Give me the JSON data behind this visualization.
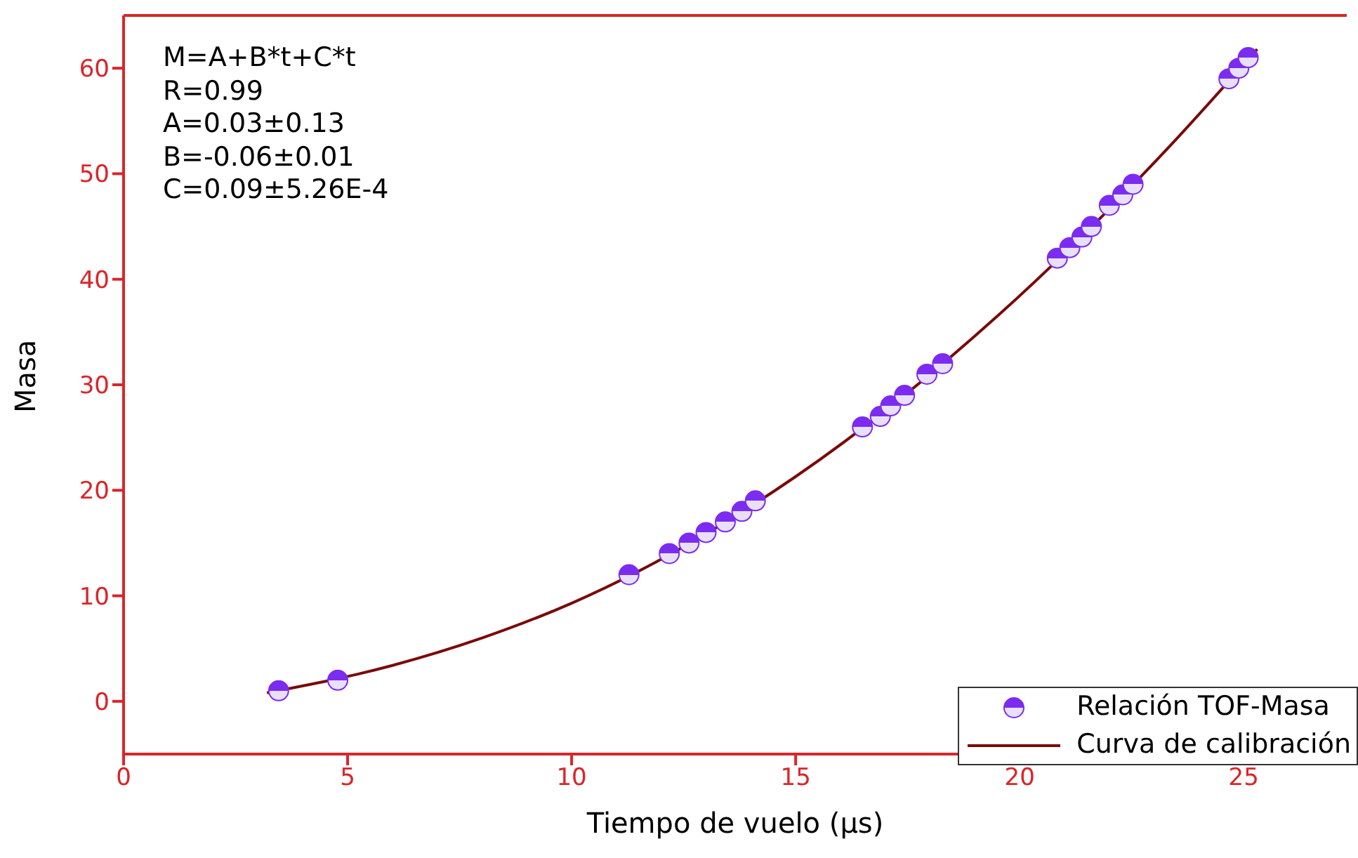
{
  "chart_data": {
    "type": "scatter",
    "xlabel": "Tiempo de vuelo (µs)",
    "ylabel": "Masa",
    "xlim": [
      0,
      27.3
    ],
    "xticks": [
      0,
      5,
      10,
      15,
      20,
      25
    ],
    "ylim": [
      -5,
      65
    ],
    "yticks": [
      0,
      10,
      20,
      30,
      40,
      50,
      60
    ],
    "legend": "bottom right",
    "marker": "circle",
    "annotations": [
      "M=A+B*t+C*t",
      "R=0.99",
      "A=0.03±0.13",
      "B=-0.06±0.01",
      "C=0.09±5.26E-4"
    ],
    "series": [
      {
        "name": "Relación TOF-Masa",
        "color": "#7b2cf0",
        "x": [
          3.46,
          4.78,
          11.28,
          12.18,
          12.62,
          13.0,
          13.43,
          13.8,
          14.1,
          16.49,
          16.89,
          17.12,
          17.43,
          17.93,
          18.28,
          20.84,
          21.12,
          21.39,
          21.6,
          22.0,
          22.3,
          22.53,
          24.67,
          24.89,
          25.1
        ],
        "values": [
          1,
          2,
          12,
          14,
          15,
          16,
          17,
          18,
          19,
          26,
          27,
          28,
          29,
          31,
          32,
          42,
          43,
          44,
          45,
          47,
          48,
          49,
          59,
          60,
          61
        ]
      },
      {
        "name": "Curva de calibración",
        "type": "line",
        "color": "#7a0a0a",
        "line_style": "solid",
        "marker": "none",
        "x": [
          3.2,
          6,
          8,
          10,
          15,
          19.5,
          23.5,
          25.3
        ],
        "values": [
          0.8,
          3.4,
          6.0,
          9.3,
          21.3,
          36.5,
          53.3,
          61.8
        ]
      }
    ]
  }
}
